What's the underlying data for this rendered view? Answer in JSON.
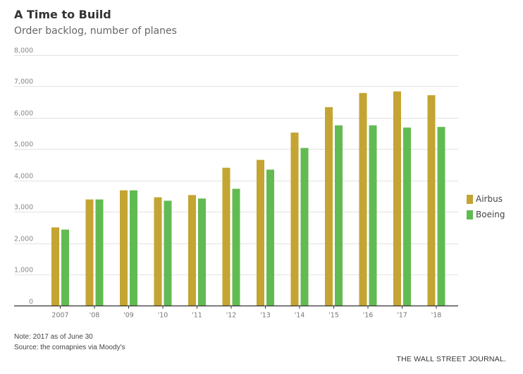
{
  "chart_data": {
    "type": "bar",
    "title": "A Time to Build",
    "subtitle": "Order backlog, number of planes",
    "xlabel": "",
    "ylabel": "",
    "categories": [
      "2007",
      "'08",
      "'09",
      "'10",
      "'11",
      "'12",
      "'13",
      "'14",
      "'15",
      "'16",
      "'17",
      "'18"
    ],
    "series": [
      {
        "name": "Airbus",
        "color": "#c4a432",
        "values": [
          2500,
          3390,
          3680,
          3460,
          3530,
          4400,
          4650,
          5520,
          6330,
          6780,
          6830,
          6710
        ]
      },
      {
        "name": "Boeing",
        "color": "#62bb52",
        "values": [
          2430,
          3390,
          3680,
          3350,
          3420,
          3730,
          4340,
          5030,
          5750,
          5750,
          5680,
          5700
        ]
      }
    ],
    "ylim": [
      0,
      8000
    ],
    "yticks": [
      0,
      1000,
      2000,
      3000,
      4000,
      5000,
      6000,
      7000,
      8000
    ],
    "ytick_labels": [
      "0",
      "1,000",
      "2,000",
      "3,000",
      "4,000",
      "5,000",
      "6,000",
      "7,000",
      "8,000"
    ],
    "grid": true,
    "legend_position": "right"
  },
  "footer": {
    "note": "Note: 2017 as of June 30",
    "source": "Source: the comapnies via Moody's",
    "credit": "THE WALL STREET JOURNAL."
  }
}
